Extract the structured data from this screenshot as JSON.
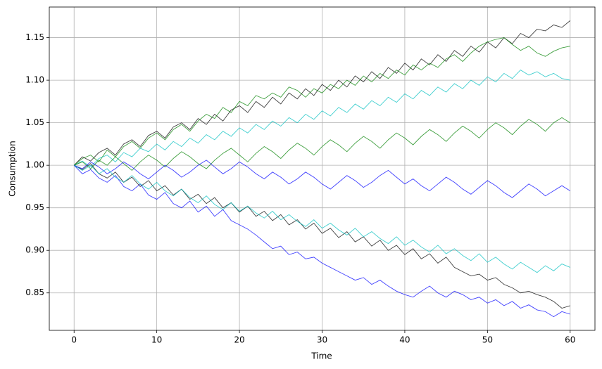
{
  "chart_data": {
    "type": "line",
    "xlabel": "Time",
    "ylabel": "Consumption",
    "x": [
      0,
      1,
      2,
      3,
      4,
      5,
      6,
      7,
      8,
      9,
      10,
      11,
      12,
      13,
      14,
      15,
      16,
      17,
      18,
      19,
      20,
      21,
      22,
      23,
      24,
      25,
      26,
      27,
      28,
      29,
      30,
      31,
      32,
      33,
      34,
      35,
      36,
      37,
      38,
      39,
      40,
      41,
      42,
      43,
      44,
      45,
      46,
      47,
      48,
      49,
      50,
      51,
      52,
      53,
      54,
      55,
      56,
      57,
      58,
      59,
      60
    ],
    "series": [
      {
        "color": "#000000",
        "values": [
          1.0,
          1.01,
          1.005,
          1.015,
          1.02,
          1.012,
          1.025,
          1.03,
          1.022,
          1.035,
          1.04,
          1.032,
          1.045,
          1.05,
          1.042,
          1.055,
          1.048,
          1.06,
          1.052,
          1.065,
          1.07,
          1.062,
          1.075,
          1.068,
          1.08,
          1.072,
          1.085,
          1.078,
          1.09,
          1.082,
          1.095,
          1.088,
          1.1,
          1.092,
          1.105,
          1.098,
          1.11,
          1.102,
          1.115,
          1.108,
          1.12,
          1.112,
          1.125,
          1.118,
          1.13,
          1.122,
          1.135,
          1.128,
          1.14,
          1.133,
          1.145,
          1.138,
          1.15,
          1.143,
          1.155,
          1.15,
          1.16,
          1.158,
          1.165,
          1.162,
          1.17
        ]
      },
      {
        "color": "#0000ff",
        "values": [
          1.0,
          0.99,
          0.995,
          0.985,
          0.98,
          0.988,
          0.975,
          0.97,
          0.978,
          0.965,
          0.96,
          0.968,
          0.955,
          0.95,
          0.958,
          0.945,
          0.952,
          0.94,
          0.948,
          0.935,
          0.93,
          0.925,
          0.918,
          0.91,
          0.902,
          0.905,
          0.895,
          0.898,
          0.89,
          0.892,
          0.885,
          0.88,
          0.875,
          0.87,
          0.865,
          0.868,
          0.86,
          0.865,
          0.858,
          0.852,
          0.848,
          0.845,
          0.852,
          0.858,
          0.85,
          0.845,
          0.852,
          0.848,
          0.842,
          0.845,
          0.838,
          0.842,
          0.835,
          0.84,
          0.832,
          0.836,
          0.83,
          0.828,
          0.822,
          0.828,
          0.825
        ]
      },
      {
        "color": "#008000",
        "values": [
          1.0,
          1.008,
          1.012,
          1.004,
          1.018,
          1.01,
          1.022,
          1.028,
          1.02,
          1.032,
          1.038,
          1.03,
          1.042,
          1.048,
          1.04,
          1.052,
          1.06,
          1.055,
          1.068,
          1.062,
          1.075,
          1.07,
          1.082,
          1.078,
          1.085,
          1.08,
          1.092,
          1.088,
          1.08,
          1.09,
          1.085,
          1.095,
          1.09,
          1.1,
          1.094,
          1.105,
          1.098,
          1.108,
          1.102,
          1.112,
          1.106,
          1.118,
          1.112,
          1.12,
          1.115,
          1.125,
          1.13,
          1.122,
          1.132,
          1.14,
          1.145,
          1.148,
          1.15,
          1.142,
          1.135,
          1.14,
          1.132,
          1.128,
          1.134,
          1.138,
          1.14
        ]
      },
      {
        "color": "#00bfbf",
        "values": [
          1.0,
          1.005,
          0.998,
          1.008,
          1.012,
          1.004,
          1.015,
          1.01,
          1.02,
          1.016,
          1.025,
          1.018,
          1.028,
          1.022,
          1.032,
          1.026,
          1.036,
          1.03,
          1.04,
          1.034,
          1.044,
          1.038,
          1.048,
          1.042,
          1.052,
          1.046,
          1.056,
          1.05,
          1.06,
          1.054,
          1.064,
          1.058,
          1.068,
          1.062,
          1.072,
          1.066,
          1.076,
          1.07,
          1.08,
          1.074,
          1.084,
          1.078,
          1.088,
          1.082,
          1.092,
          1.086,
          1.096,
          1.09,
          1.1,
          1.094,
          1.104,
          1.098,
          1.108,
          1.102,
          1.112,
          1.106,
          1.11,
          1.104,
          1.108,
          1.102,
          1.1
        ]
      },
      {
        "color": "#000000",
        "values": [
          1.0,
          0.995,
          1.002,
          0.99,
          0.985,
          0.992,
          0.98,
          0.986,
          0.975,
          0.982,
          0.97,
          0.976,
          0.965,
          0.972,
          0.96,
          0.966,
          0.955,
          0.962,
          0.95,
          0.956,
          0.945,
          0.952,
          0.94,
          0.946,
          0.935,
          0.942,
          0.93,
          0.936,
          0.925,
          0.932,
          0.92,
          0.926,
          0.915,
          0.922,
          0.91,
          0.916,
          0.905,
          0.912,
          0.9,
          0.906,
          0.895,
          0.902,
          0.89,
          0.896,
          0.885,
          0.892,
          0.88,
          0.875,
          0.87,
          0.872,
          0.865,
          0.868,
          0.86,
          0.856,
          0.85,
          0.852,
          0.848,
          0.845,
          0.84,
          0.832,
          0.835
        ]
      },
      {
        "color": "#008000",
        "values": [
          1.0,
          1.004,
          0.996,
          1.006,
          1.0,
          1.01,
          1.002,
          0.994,
          1.004,
          1.012,
          1.006,
          0.998,
          1.008,
          1.016,
          1.01,
          1.002,
          0.996,
          1.006,
          1.014,
          1.02,
          1.012,
          1.004,
          1.014,
          1.022,
          1.016,
          1.008,
          1.018,
          1.026,
          1.02,
          1.012,
          1.022,
          1.03,
          1.024,
          1.016,
          1.026,
          1.034,
          1.028,
          1.02,
          1.03,
          1.038,
          1.032,
          1.024,
          1.034,
          1.042,
          1.036,
          1.028,
          1.038,
          1.046,
          1.04,
          1.032,
          1.042,
          1.05,
          1.044,
          1.036,
          1.046,
          1.054,
          1.048,
          1.04,
          1.05,
          1.056,
          1.05
        ]
      },
      {
        "color": "#0000ff",
        "values": [
          1.0,
          0.996,
          1.004,
          0.998,
          0.99,
          0.996,
          1.004,
          0.998,
          0.99,
          0.984,
          0.992,
          1.0,
          0.994,
          0.986,
          0.992,
          1.0,
          1.006,
          0.998,
          0.99,
          0.996,
          1.004,
          0.998,
          0.99,
          0.984,
          0.992,
          0.986,
          0.978,
          0.984,
          0.992,
          0.986,
          0.978,
          0.972,
          0.98,
          0.988,
          0.982,
          0.974,
          0.98,
          0.988,
          0.994,
          0.986,
          0.978,
          0.984,
          0.976,
          0.97,
          0.978,
          0.986,
          0.98,
          0.972,
          0.966,
          0.974,
          0.982,
          0.976,
          0.968,
          0.962,
          0.97,
          0.978,
          0.972,
          0.964,
          0.97,
          0.976,
          0.97
        ]
      },
      {
        "color": "#00bfbf",
        "values": [
          1.0,
          0.994,
          1.0,
          0.99,
          0.996,
          0.986,
          0.98,
          0.988,
          0.978,
          0.972,
          0.98,
          0.97,
          0.964,
          0.972,
          0.962,
          0.956,
          0.964,
          0.954,
          0.948,
          0.956,
          0.946,
          0.952,
          0.944,
          0.938,
          0.946,
          0.936,
          0.942,
          0.934,
          0.928,
          0.936,
          0.926,
          0.932,
          0.924,
          0.918,
          0.926,
          0.916,
          0.922,
          0.914,
          0.908,
          0.916,
          0.906,
          0.912,
          0.904,
          0.898,
          0.906,
          0.896,
          0.902,
          0.894,
          0.888,
          0.896,
          0.886,
          0.892,
          0.884,
          0.878,
          0.886,
          0.88,
          0.874,
          0.882,
          0.876,
          0.884,
          0.88
        ]
      }
    ],
    "xlim": [
      -3,
      63
    ],
    "xticks": [
      0,
      10,
      20,
      30,
      40,
      50,
      60
    ],
    "ylim": [
      0.806,
      1.186
    ],
    "yticks": [
      0.85,
      {
        "value": 0.9,
        "label": "0.90"
      },
      0.95,
      {
        "value": 1.0,
        "label": "1.00"
      },
      1.05,
      {
        "value": 1.1,
        "label": "1.10"
      },
      1.15
    ],
    "grid": true
  }
}
